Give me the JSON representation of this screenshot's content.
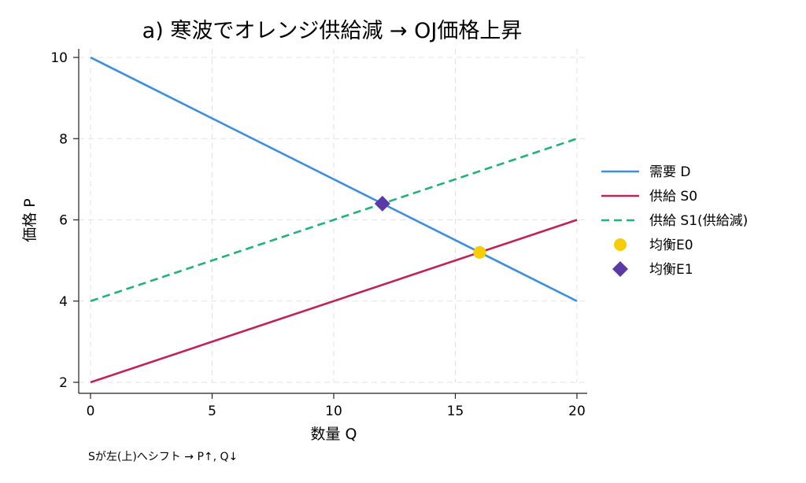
{
  "chart_data": {
    "type": "line",
    "title": "a) 寒波でオレンジ供給減 → OJ価格上昇",
    "xlabel": "数量 Q",
    "ylabel": "価格 P",
    "xlim": [
      0,
      20
    ],
    "ylim": [
      2,
      10
    ],
    "xticks": [
      0,
      5,
      10,
      15,
      20
    ],
    "yticks": [
      2,
      4,
      6,
      8,
      10
    ],
    "grid": true,
    "legend_position": "right",
    "series": [
      {
        "name": "需要 D",
        "kind": "line",
        "style": "solid",
        "color": "#3a8ee6",
        "x": [
          0,
          20
        ],
        "y": [
          10,
          4
        ]
      },
      {
        "name": "供給 S0",
        "kind": "line",
        "style": "solid",
        "color": "#c2225b",
        "x": [
          0,
          20
        ],
        "y": [
          2,
          6
        ]
      },
      {
        "name": "供給 S1(供給減)",
        "kind": "line",
        "style": "dashed",
        "color": "#1fb37a",
        "x": [
          0,
          20
        ],
        "y": [
          4,
          8
        ]
      },
      {
        "name": "均衡E0",
        "kind": "point",
        "marker": "circle",
        "color": "#f7ce05",
        "x": [
          16
        ],
        "y": [
          5.2
        ]
      },
      {
        "name": "均衡E1",
        "kind": "point",
        "marker": "diamond",
        "color": "#5b3aa8",
        "x": [
          12
        ],
        "y": [
          6.4
        ]
      }
    ],
    "annotation": "Sが左(上)へシフト → P↑, Q↓"
  }
}
